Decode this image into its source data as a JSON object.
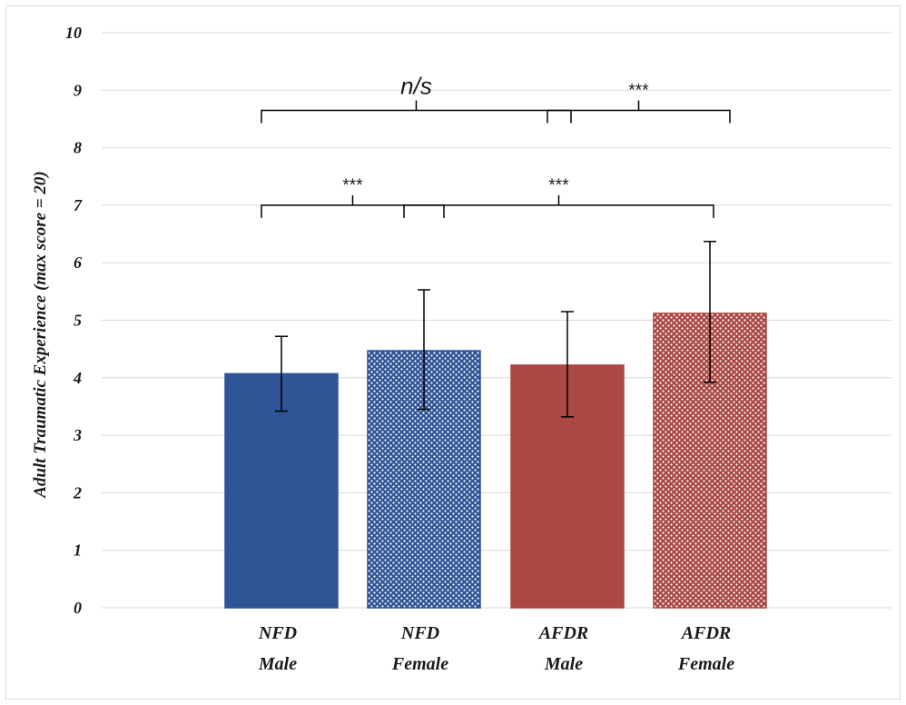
{
  "chart_data": {
    "type": "bar",
    "title": "",
    "xlabel": "",
    "ylabel": "Adult Traumatic Experience (max score = 20)",
    "ylim": [
      0,
      10
    ],
    "yticks": [
      "0",
      "1",
      "2",
      "3",
      "4",
      "5",
      "6",
      "7",
      "8",
      "9",
      "10"
    ],
    "grid": true,
    "categories": [
      {
        "line1": "NFD",
        "line2": "Male"
      },
      {
        "line1": "NFD",
        "line2": "Female"
      },
      {
        "line1": "AFDR",
        "line2": "Male"
      },
      {
        "line1": "AFDR",
        "line2": "Female"
      }
    ],
    "values": [
      4.07,
      4.47,
      4.22,
      5.12
    ],
    "errors": [
      {
        "low": 3.42,
        "high": 4.72
      },
      {
        "low": 3.45,
        "high": 5.53
      },
      {
        "low": 3.32,
        "high": 5.15
      },
      {
        "low": 3.92,
        "high": 6.37
      }
    ],
    "bar_styles": [
      {
        "color": "#2f5597",
        "pattern": "solid"
      },
      {
        "color": "#2f5597",
        "pattern": "dotted"
      },
      {
        "color": "#a94844",
        "pattern": "solid"
      },
      {
        "color": "#a94844",
        "pattern": "dotted"
      }
    ],
    "annotations": [
      {
        "from": 0,
        "to": 2,
        "y": 8.65,
        "label": "n/s",
        "style": "ns"
      },
      {
        "from": 2,
        "to": 3,
        "y": 8.65,
        "label": "***",
        "style": "sig"
      },
      {
        "from": 0,
        "to": 1,
        "y": 7.0,
        "label": "***",
        "style": "sig"
      },
      {
        "from": 1,
        "to": 3,
        "y": 7.0,
        "label": "***",
        "style": "sig"
      }
    ]
  }
}
